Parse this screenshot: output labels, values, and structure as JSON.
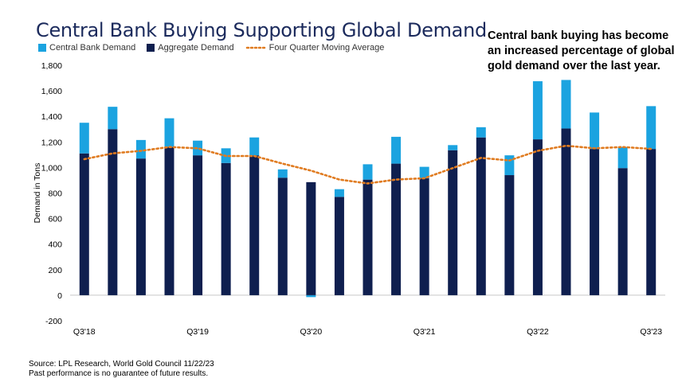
{
  "title": "Central Bank Buying Supporting Global Demand",
  "callout": [
    "Central bank buying has become",
    "an increased percentage of global",
    "gold demand over the last year."
  ],
  "legend": {
    "central_bank": "Central Bank Demand",
    "aggregate": "Aggregate Demand",
    "moving_avg": "Four Quarter Moving Average"
  },
  "colors": {
    "central_bank": "#1ba3e0",
    "aggregate": "#0f1f4f",
    "moving_avg": "#e07b20",
    "title": "#1b2a5c"
  },
  "footer": {
    "source": "Source: LPL Research, World Gold Council 11/22/23",
    "disclaimer": "Past performance is no guarantee of future results."
  },
  "chart_data": {
    "type": "bar",
    "ylabel": "Demand in Tons",
    "ylim": [
      -200,
      1800
    ],
    "yticks": [
      -200,
      0,
      200,
      400,
      600,
      800,
      "1,000",
      "1,200",
      "1,400",
      "1,600",
      "1,800"
    ],
    "ytick_values": [
      -200,
      0,
      200,
      400,
      600,
      800,
      1000,
      1200,
      1400,
      1600,
      1800
    ],
    "x_tick_labels": [
      "Q3'18",
      "",
      "",
      "",
      "Q3'19",
      "",
      "",
      "",
      "Q3'20",
      "",
      "",
      "",
      "Q3'21",
      "",
      "",
      "",
      "Q3'22",
      "",
      "",
      "",
      "Q3'23"
    ],
    "series": [
      {
        "name": "Aggregate Demand",
        "values": [
          1110,
          1300,
          1070,
          1160,
          1095,
          1035,
          1095,
          920,
          885,
          770,
          905,
          1030,
          915,
          1135,
          1235,
          940,
          1220,
          1305,
          1145,
          995,
          1145
        ]
      },
      {
        "name": "Central Bank Demand",
        "values": [
          240,
          175,
          145,
          225,
          115,
          115,
          140,
          65,
          -15,
          60,
          120,
          210,
          90,
          40,
          80,
          155,
          455,
          380,
          285,
          165,
          335
        ]
      },
      {
        "name": "Four Quarter Moving Average",
        "values": [
          1065,
          1110,
          1130,
          1160,
          1150,
          1090,
          1090,
          1030,
          975,
          905,
          875,
          905,
          915,
          995,
          1075,
          1055,
          1130,
          1170,
          1150,
          1160,
          1145
        ]
      }
    ]
  }
}
